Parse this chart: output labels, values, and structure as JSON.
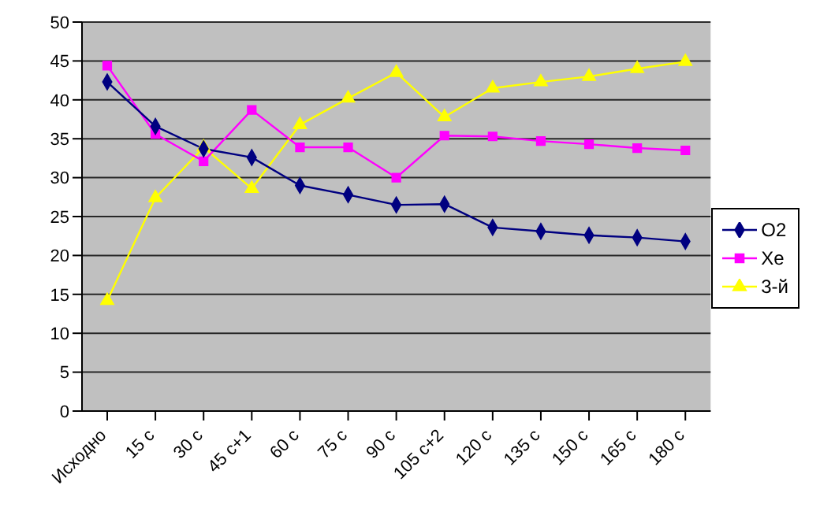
{
  "chart_data": {
    "type": "line",
    "categories": [
      "Исходно",
      "15 с",
      "30 с",
      "45 с+1",
      "60 с",
      "75 с",
      "90 с",
      "105 с+2",
      "120 с",
      "135 с",
      "150 с",
      "165 с",
      "180 с"
    ],
    "series": [
      {
        "name": "O2",
        "color": "#000080",
        "marker": "diamond",
        "values": [
          42.3,
          36.6,
          33.7,
          32.6,
          29.0,
          27.8,
          26.5,
          26.6,
          23.6,
          23.1,
          22.6,
          22.3,
          21.8
        ]
      },
      {
        "name": "Xe",
        "color": "#ff00ff",
        "marker": "square",
        "values": [
          44.4,
          35.6,
          32.1,
          38.7,
          33.9,
          33.9,
          30.0,
          35.4,
          35.3,
          34.7,
          34.3,
          33.8,
          33.5
        ]
      },
      {
        "name": "3-й",
        "color": "#ffff00",
        "marker": "triangle",
        "values": [
          14.2,
          27.4,
          33.9,
          28.6,
          36.8,
          40.2,
          43.5,
          37.8,
          41.5,
          42.3,
          43.0,
          44.0,
          44.9
        ]
      }
    ],
    "ylim": [
      0,
      50
    ],
    "yticks": [
      0,
      5,
      10,
      15,
      20,
      25,
      30,
      35,
      40,
      45,
      50
    ],
    "grid": "y",
    "legend": "right"
  }
}
